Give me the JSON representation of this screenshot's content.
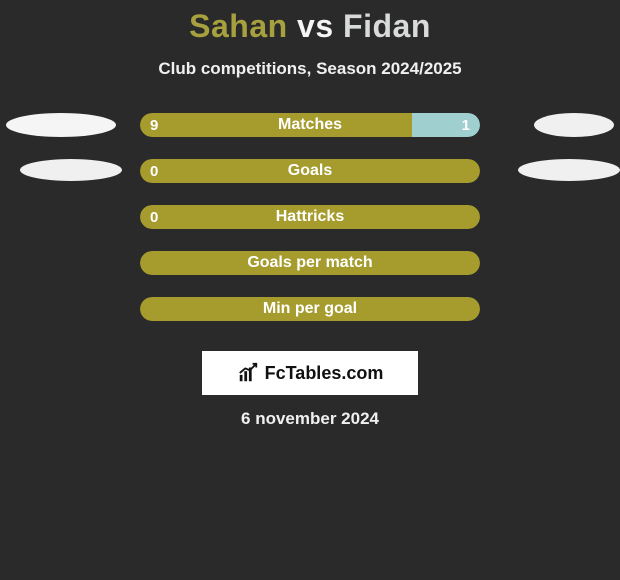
{
  "title": {
    "left": "Sahan",
    "vs": "vs",
    "right": "Fidan",
    "left_color": "#a7a03f",
    "right_color": "#d9dbda"
  },
  "subtitle": "Club competitions, Season 2024/2025",
  "bar_track_width": 340,
  "colors": {
    "left_bar": "#a69c2e",
    "right_bar": "#9fcfcf",
    "background": "#2a2a2a",
    "ellipse_left_1": "#f5f5f5",
    "ellipse_right_1": "#f0f0f0",
    "ellipse_left_2": "#f0f0f0",
    "ellipse_right_2": "#f0f0f0"
  },
  "rows": [
    {
      "label": "Matches",
      "left_val": "9",
      "right_val": "1",
      "left_pct": 80,
      "right_pct": 20,
      "show_left_val": true,
      "show_right_val": true,
      "side_ellipses": "first"
    },
    {
      "label": "Goals",
      "left_val": "0",
      "right_val": "",
      "left_pct": 100,
      "right_pct": 0,
      "show_left_val": true,
      "show_right_val": false,
      "side_ellipses": "second"
    },
    {
      "label": "Hattricks",
      "left_val": "0",
      "right_val": "",
      "left_pct": 100,
      "right_pct": 0,
      "show_left_val": true,
      "show_right_val": false,
      "side_ellipses": "none"
    },
    {
      "label": "Goals per match",
      "left_val": "",
      "right_val": "",
      "left_pct": 100,
      "right_pct": 0,
      "show_left_val": false,
      "show_right_val": false,
      "side_ellipses": "none"
    },
    {
      "label": "Min per goal",
      "left_val": "",
      "right_val": "",
      "left_pct": 100,
      "right_pct": 0,
      "show_left_val": false,
      "show_right_val": false,
      "side_ellipses": "none"
    }
  ],
  "brand": "FcTables.com",
  "date": "6 november 2024"
}
